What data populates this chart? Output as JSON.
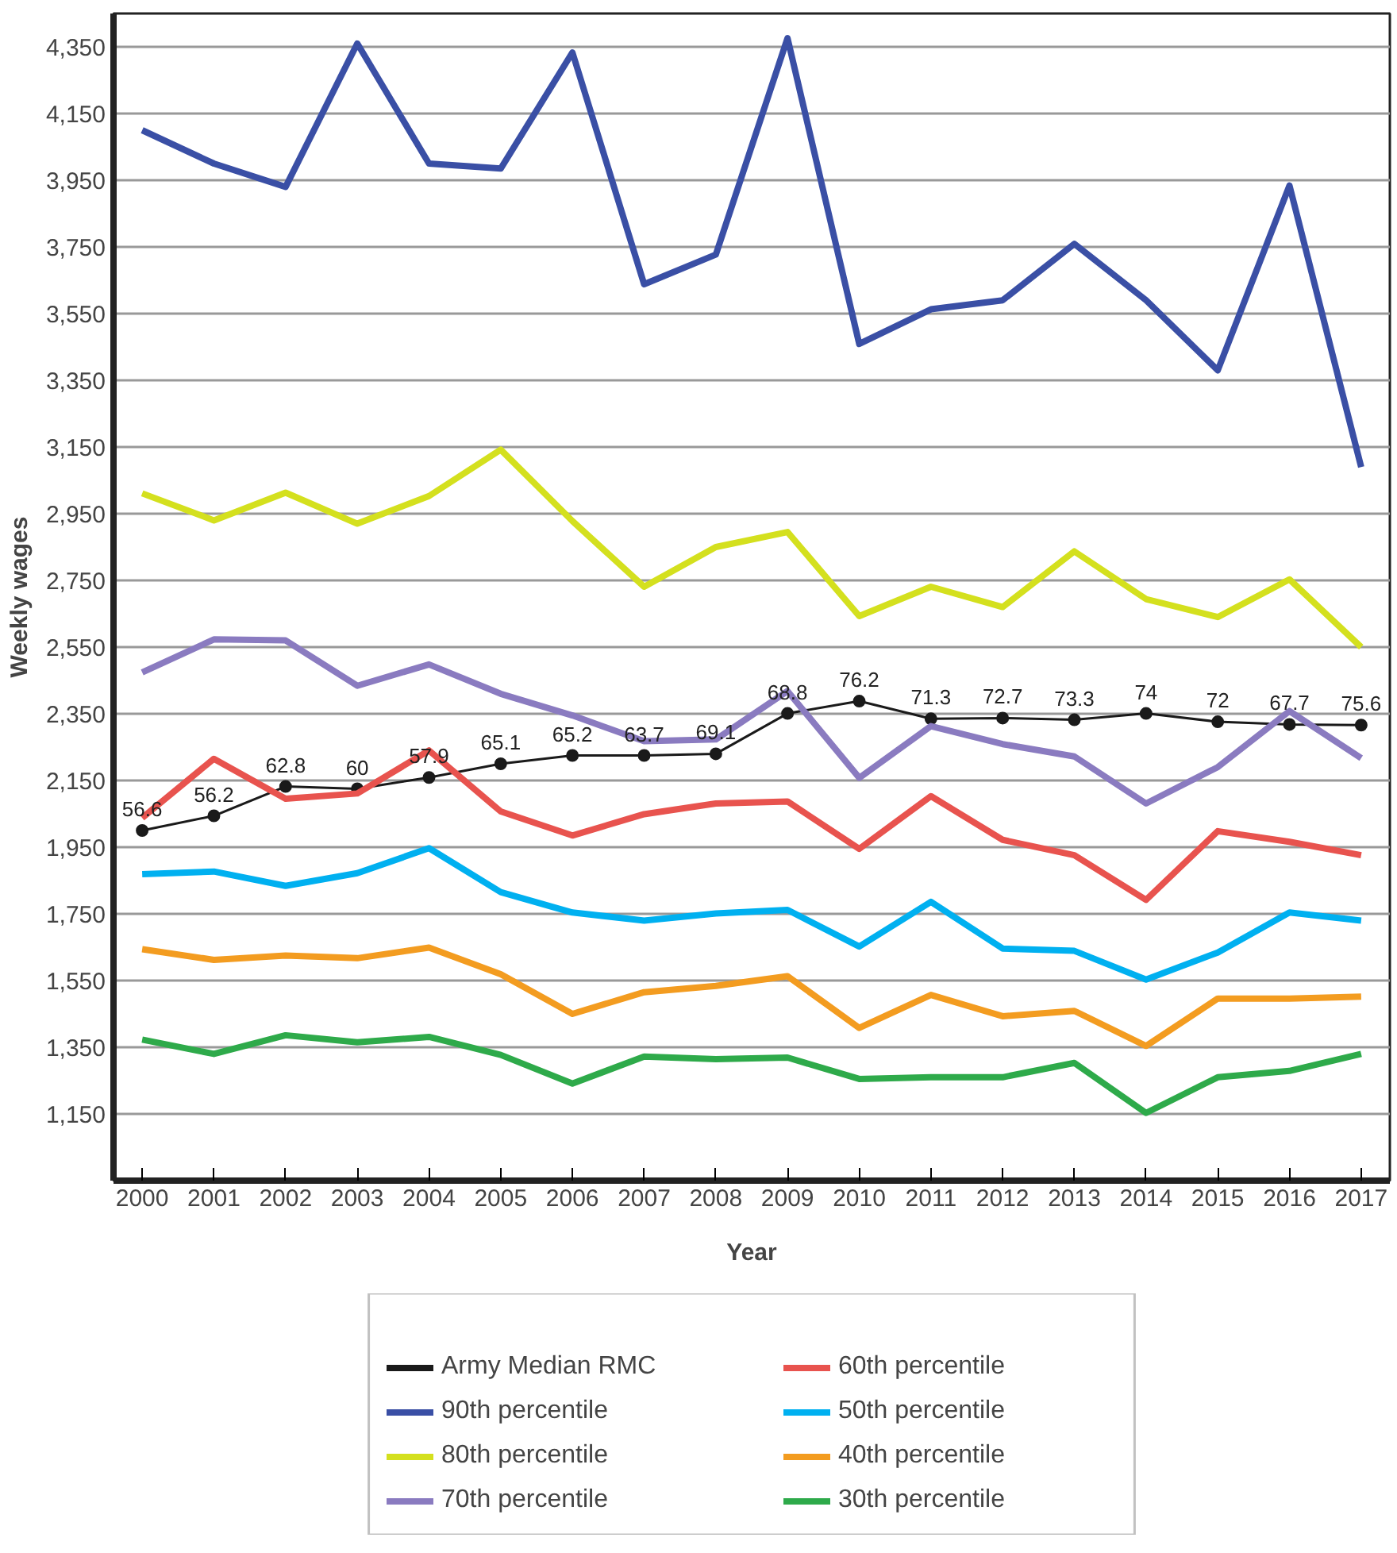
{
  "chart_data": {
    "type": "line",
    "xlabel": "Year",
    "ylabel": "Weekly wages",
    "x": [
      2000,
      2001,
      2002,
      2003,
      2004,
      2005,
      2006,
      2007,
      2008,
      2009,
      2010,
      2011,
      2012,
      2013,
      2014,
      2015,
      2016,
      2017
    ],
    "xlim": [
      1999.6,
      2017.4
    ],
    "xticks": [
      2000,
      2001,
      2002,
      2003,
      2004,
      2005,
      2006,
      2007,
      2008,
      2009,
      2010,
      2011,
      2012,
      2013,
      2014,
      2015,
      2016,
      2017
    ],
    "ylim": [
      950,
      4450
    ],
    "yticks": [
      {
        "value": 1150,
        "label": "1,150"
      },
      {
        "value": 1350,
        "label": "1,350"
      },
      {
        "value": 1550,
        "label": "1,550"
      },
      {
        "value": 1750,
        "label": "1,750"
      },
      {
        "value": 1950,
        "label": "1,950"
      },
      {
        "value": 2150,
        "label": "2,150"
      },
      {
        "value": 2350,
        "label": "2,350"
      },
      {
        "value": 2550,
        "label": "2,550"
      },
      {
        "value": 2750,
        "label": "2,750"
      },
      {
        "value": 2950,
        "label": "2,950"
      },
      {
        "value": 3150,
        "label": "3,150"
      },
      {
        "value": 3350,
        "label": "3,350"
      },
      {
        "value": 3550,
        "label": "3,550"
      },
      {
        "value": 3750,
        "label": "3,750"
      },
      {
        "value": 3950,
        "label": "3,950"
      },
      {
        "value": 4150,
        "label": "4,150"
      },
      {
        "value": 4350,
        "label": "4,350"
      }
    ],
    "grid": "y",
    "legend": "bottom",
    "line_style": "solid",
    "annotations": [
      {
        "text": "56.6",
        "x": 2000,
        "y": 2000
      },
      {
        "text": "56.2",
        "x": 2001,
        "y": 2044
      },
      {
        "text": "62.8",
        "x": 2002,
        "y": 2132
      },
      {
        "text": "60",
        "x": 2003,
        "y": 2125
      },
      {
        "text": "57.9",
        "x": 2004,
        "y": 2159
      },
      {
        "text": "65.1",
        "x": 2005,
        "y": 2200
      },
      {
        "text": "65.2",
        "x": 2006,
        "y": 2225
      },
      {
        "text": "63.7",
        "x": 2007,
        "y": 2225
      },
      {
        "text": "69.1",
        "x": 2008,
        "y": 2230
      },
      {
        "text": "68.8",
        "x": 2009,
        "y": 2351
      },
      {
        "text": "76.2",
        "x": 2010,
        "y": 2388
      },
      {
        "text": "71.3",
        "x": 2011,
        "y": 2335
      },
      {
        "text": "72.7",
        "x": 2012,
        "y": 2337
      },
      {
        "text": "73.3",
        "x": 2013,
        "y": 2332
      },
      {
        "text": "74",
        "x": 2014,
        "y": 2351
      },
      {
        "text": "72",
        "x": 2015,
        "y": 2326
      },
      {
        "text": "67.7",
        "x": 2016,
        "y": 2318
      },
      {
        "text": "75.6",
        "x": 2017,
        "y": 2316
      }
    ],
    "series": [
      {
        "name": "Army Median RMC",
        "color": "#1a1a1a",
        "marker": "circle",
        "values": [
          2000,
          2044,
          2132,
          2125,
          2159,
          2200,
          2225,
          2225,
          2230,
          2351,
          2388,
          2335,
          2337,
          2332,
          2351,
          2326,
          2318,
          2316
        ]
      },
      {
        "name": "90th percentile",
        "color": "#3a4fa5",
        "values": [
          4100,
          4000,
          3930,
          4360,
          4000,
          3985,
          4333,
          3638,
          3727,
          4376,
          3459,
          3563,
          3590,
          3759,
          3590,
          3380,
          3934,
          3090
        ]
      },
      {
        "name": "80th percentile",
        "color": "#d4e01e",
        "values": [
          3011,
          2930,
          3013,
          2920,
          3003,
          3142,
          2928,
          2731,
          2850,
          2895,
          2643,
          2731,
          2670,
          2837,
          2694,
          2640,
          2753,
          2550
        ]
      },
      {
        "name": "70th percentile",
        "color": "#8a7bc0",
        "values": [
          2474,
          2573,
          2570,
          2434,
          2498,
          2410,
          2345,
          2268,
          2273,
          2418,
          2158,
          2313,
          2259,
          2222,
          2081,
          2190,
          2358,
          2217
        ]
      },
      {
        "name": "60th percentile",
        "color": "#e8534e",
        "values": [
          2038,
          2215,
          2095,
          2111,
          2240,
          2057,
          1985,
          2049,
          2081,
          2087,
          1945,
          2103,
          1972,
          1926,
          1792,
          1998,
          1966,
          1926
        ]
      },
      {
        "name": "50th percentile",
        "color": "#00b0f0",
        "values": [
          1869,
          1877,
          1834,
          1872,
          1947,
          1815,
          1754,
          1730,
          1751,
          1762,
          1652,
          1786,
          1646,
          1639,
          1553,
          1634,
          1754,
          1730
        ]
      },
      {
        "name": "40th percentile",
        "color": "#f39c20",
        "values": [
          1644,
          1612,
          1625,
          1617,
          1649,
          1569,
          1450,
          1515,
          1534,
          1563,
          1408,
          1507,
          1443,
          1459,
          1354,
          1496,
          1496,
          1502
        ]
      },
      {
        "name": "30th percentile",
        "color": "#2eaa4a",
        "values": [
          1373,
          1330,
          1386,
          1365,
          1381,
          1327,
          1241,
          1322,
          1314,
          1319,
          1255,
          1260,
          1260,
          1303,
          1153,
          1260,
          1279,
          1330
        ]
      }
    ]
  }
}
